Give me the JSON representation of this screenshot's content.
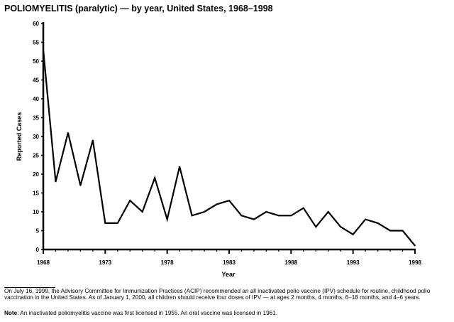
{
  "chart_data": {
    "type": "line",
    "title": "POLIOMYELITIS (paralytic) — by year, United States, 1968–1998",
    "xlabel": "Year",
    "ylabel": "Reported Cases",
    "x": [
      1968,
      1969,
      1970,
      1971,
      1972,
      1973,
      1974,
      1975,
      1976,
      1977,
      1978,
      1979,
      1980,
      1981,
      1982,
      1983,
      1984,
      1985,
      1986,
      1987,
      1988,
      1989,
      1990,
      1991,
      1992,
      1993,
      1994,
      1995,
      1996,
      1997,
      1998
    ],
    "series": [
      {
        "name": "Reported Cases",
        "values": [
          53,
          18,
          31,
          17,
          29,
          7,
          7,
          13,
          10,
          19,
          8,
          22,
          9,
          10,
          12,
          13,
          9,
          8,
          10,
          9,
          9,
          11,
          6,
          10,
          6,
          4,
          8,
          7,
          5,
          5,
          1
        ]
      }
    ],
    "xlim": [
      1968,
      1998
    ],
    "ylim": [
      0,
      60
    ],
    "xticks": [
      "1968",
      "1973",
      "1978",
      "1983",
      "1988",
      "1993",
      "1998"
    ],
    "yticks": [
      "0",
      "5",
      "10",
      "15",
      "20",
      "25",
      "30",
      "35",
      "40",
      "45",
      "50",
      "55",
      "60"
    ],
    "grid": false,
    "color": "#000000"
  },
  "footnote": "On July 16, 1999, the Advisory Committee for Immunization Practices (ACIP) recommended an all inactivated polio vaccine (IPV) schedule for routine, childhood polio vaccination in the United States. As of January 1, 2000, all children should receive four doses of IPV — at ages 2 months, 4 months, 6–18 months, and 4–6 years.",
  "note": {
    "label": "Note",
    "text": ": An inactivated poliomyelitis vaccine was first licensed in 1955. An oral vaccine was licensed in 1961."
  }
}
